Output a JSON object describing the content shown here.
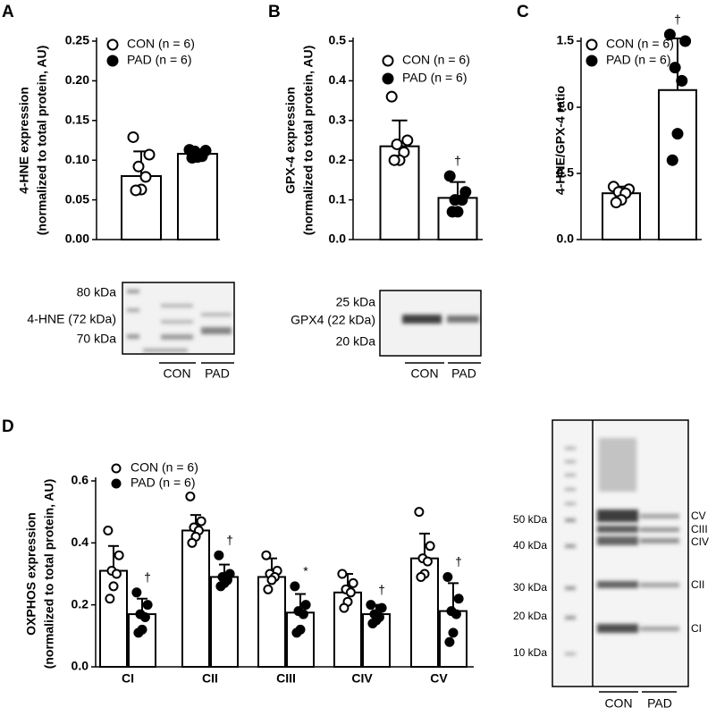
{
  "panels": [
    "A",
    "B",
    "C",
    "D"
  ],
  "chart_data": [
    {
      "type": "bar",
      "ylabel": [
        "4-HNE expression",
        "(normalized to total protein, AU)"
      ],
      "ylim": [
        0,
        0.25
      ],
      "yticks": [
        {
          "value": 0,
          "label": "0.00"
        },
        0.05,
        {
          "value": 0.1,
          "label": "0.10"
        },
        0.15,
        {
          "value": 0.2,
          "label": "0.20"
        },
        0.25
      ],
      "bar_color": "#ffffff",
      "legend": "upper left",
      "series": [
        {
          "name": "CON (n = 6)",
          "color": "#ffffff",
          "values": [
            0.08
          ],
          "errors": [
            0.031
          ],
          "points": [
            [
              0.129,
              0.107,
              0.092,
              0.079,
              0.063,
              0.062
            ]
          ]
        },
        {
          "name": "PAD (n = 6)",
          "color": "#000000",
          "values": [
            0.108
          ],
          "errors": [
            0.005
          ],
          "points": [
            [
              0.113,
              0.112,
              0.111,
              0.105,
              0.104,
              0.103
            ]
          ]
        }
      ]
    },
    {
      "type": "bar",
      "ylabel": [
        "GPX-4 expression",
        "(normalized to total protein, AU)"
      ],
      "ylim": [
        0,
        0.5
      ],
      "yticks": [
        {
          "value": 0,
          "label": "0.0"
        },
        0.1,
        0.2,
        0.3,
        0.4,
        0.5
      ],
      "bar_color": "#ffffff",
      "legend": "upper left",
      "series": [
        {
          "name": "CON (n = 6)",
          "color": "#ffffff",
          "values": [
            0.235
          ],
          "errors": [
            0.065
          ],
          "points": [
            [
              0.36,
              0.25,
              0.24,
              0.22,
              0.2,
              0.2
            ]
          ]
        },
        {
          "name": "PAD (n = 6)",
          "color": "#000000",
          "values": [
            0.105
          ],
          "errors": [
            0.04
          ],
          "points": [
            [
              0.16,
              0.12,
              0.1,
              0.1,
              0.07,
              0.07
            ]
          ],
          "annotations": [
            "†"
          ]
        }
      ]
    },
    {
      "type": "bar",
      "ylabel": [
        "4-HNE/GPX-4 ratio"
      ],
      "ylim": [
        0,
        1.5
      ],
      "yticks": [
        {
          "value": 0,
          "label": "0.0"
        },
        0.5,
        {
          "value": 1,
          "label": "1.0"
        },
        1.5
      ],
      "bar_color": "#ffffff",
      "legend": "upper left",
      "series": [
        {
          "name": "CON (n = 6)",
          "color": "#ffffff",
          "values": [
            0.35
          ],
          "errors": [
            0.05
          ],
          "points": [
            [
              0.4,
              0.38,
              0.36,
              0.35,
              0.3,
              0.28
            ]
          ]
        },
        {
          "name": "PAD (n = 6)",
          "color": "#000000",
          "values": [
            1.13
          ],
          "errors": [
            0.39
          ],
          "points": [
            [
              1.55,
              1.5,
              1.3,
              1.2,
              0.8,
              0.6
            ]
          ],
          "annotations": [
            "†"
          ]
        }
      ]
    },
    {
      "type": "bar",
      "ylabel": [
        "OXPHOS expression",
        "(normalized to total protein, AU)"
      ],
      "categories": [
        "CI",
        "CII",
        "CIII",
        "CIV",
        "CV"
      ],
      "ylim": [
        0,
        0.6
      ],
      "yticks": [
        {
          "value": 0,
          "label": "0.0"
        },
        0.2,
        0.4,
        0.6
      ],
      "bar_color": "#ffffff",
      "legend": "upper left",
      "series": [
        {
          "name": "CON (n = 6)",
          "color": "#ffffff",
          "values": [
            0.31,
            0.44,
            0.29,
            0.24,
            0.35
          ],
          "errors": [
            0.08,
            0.05,
            0.06,
            0.06,
            0.08
          ],
          "points": [
            [
              0.44,
              0.36,
              0.31,
              0.3,
              0.26,
              0.22
            ],
            [
              0.55,
              0.47,
              0.45,
              0.44,
              0.42,
              0.4
            ],
            [
              0.36,
              0.31,
              0.3,
              0.29,
              0.28,
              0.25
            ],
            [
              0.3,
              0.27,
              0.25,
              0.24,
              0.21,
              0.19
            ],
            [
              0.5,
              0.39,
              0.35,
              0.34,
              0.3,
              0.29
            ]
          ]
        },
        {
          "name": "PAD (n = 6)",
          "color": "#000000",
          "values": [
            0.17,
            0.29,
            0.175,
            0.17,
            0.18
          ],
          "errors": [
            0.05,
            0.04,
            0.06,
            0.03,
            0.09
          ],
          "points": [
            [
              0.24,
              0.2,
              0.17,
              0.16,
              0.12,
              0.11
            ],
            [
              0.36,
              0.3,
              0.29,
              0.28,
              0.27,
              0.26
            ],
            [
              0.26,
              0.2,
              0.18,
              0.17,
              0.12,
              0.11
            ],
            [
              0.2,
              0.19,
              0.17,
              0.16,
              0.15,
              0.14
            ],
            [
              0.29,
              0.22,
              0.18,
              0.17,
              0.11,
              0.08
            ]
          ],
          "annotations": [
            "†",
            "†",
            "*",
            "†",
            "†"
          ]
        }
      ]
    }
  ],
  "blots": [
    {
      "markers": [
        "80 kDa",
        "4-HNE (72 kDa)",
        "70 kDa"
      ],
      "lanes": [
        "CON",
        "PAD"
      ]
    },
    {
      "markers": [
        "25 kDa",
        "GPX4 (22 kDa)",
        "20 kDa"
      ],
      "lanes": [
        "CON",
        "PAD"
      ]
    },
    {
      "markers": [
        "50 kDa",
        "40 kDa",
        "30 kDa",
        "20 kDa",
        "10 kDa"
      ],
      "bands": [
        "CV",
        "CIII",
        "CIV",
        "CII",
        "CI"
      ],
      "lanes": [
        "CON",
        "PAD"
      ]
    }
  ]
}
